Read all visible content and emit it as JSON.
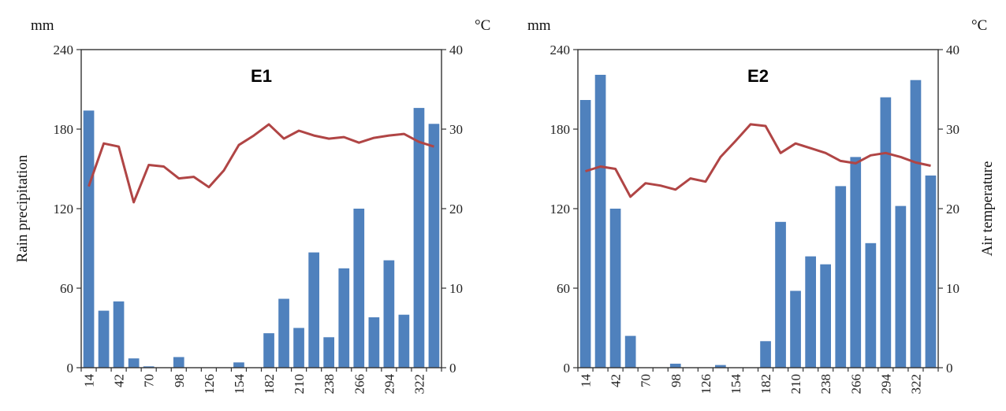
{
  "chart_data": [
    {
      "type": "bar",
      "title": "E1",
      "x": [
        14,
        28,
        42,
        56,
        70,
        84,
        98,
        112,
        126,
        140,
        154,
        168,
        182,
        196,
        210,
        224,
        238,
        252,
        266,
        280,
        294,
        308,
        322,
        336
      ],
      "x_tick_labels": [
        "14",
        "42",
        "70",
        "98",
        "126",
        "154",
        "182",
        "210",
        "238",
        "266",
        "294",
        "322"
      ],
      "ylabel": "Rain precipitation",
      "ylabel_unit": "mm",
      "y2label": "",
      "y2label_unit": "°C",
      "ylim": [
        0,
        240
      ],
      "y2lim": [
        0,
        40
      ],
      "y_ticks": [
        "0",
        "60",
        "120",
        "180",
        "240"
      ],
      "y2_ticks": [
        "0",
        "10",
        "20",
        "30",
        "40"
      ],
      "grid": false,
      "series": [
        {
          "type": "bar",
          "axis": "left",
          "color": "#4f81bd",
          "values": [
            194,
            43,
            50,
            7,
            1,
            0,
            8,
            0,
            0,
            0,
            4,
            0,
            26,
            52,
            30,
            87,
            23,
            75,
            120,
            38,
            81,
            40,
            196,
            184
          ]
        },
        {
          "type": "line",
          "axis": "right",
          "color": "#b04545",
          "values": [
            22.8,
            28.2,
            27.8,
            20.8,
            25.5,
            25.3,
            23.8,
            24.0,
            22.7,
            24.8,
            28.0,
            29.2,
            30.6,
            28.8,
            29.8,
            29.2,
            28.8,
            29.0,
            28.3,
            28.9,
            29.2,
            29.4,
            28.4,
            27.8
          ]
        }
      ]
    },
    {
      "type": "bar",
      "title": "E2",
      "x": [
        14,
        28,
        42,
        56,
        70,
        84,
        98,
        112,
        126,
        140,
        154,
        168,
        182,
        196,
        210,
        224,
        238,
        252,
        266,
        280,
        294,
        308,
        322,
        336
      ],
      "x_tick_labels": [
        "14",
        "42",
        "70",
        "98",
        "126",
        "154",
        "182",
        "210",
        "238",
        "266",
        "294",
        "322"
      ],
      "ylabel": "",
      "ylabel_unit": "mm",
      "y2label": "Air temperature",
      "y2label_unit": "°C",
      "ylim": [
        0,
        240
      ],
      "y2lim": [
        0,
        40
      ],
      "y_ticks": [
        "0",
        "60",
        "120",
        "180",
        "240"
      ],
      "y2_ticks": [
        "0",
        "10",
        "20",
        "30",
        "40"
      ],
      "grid": false,
      "series": [
        {
          "type": "bar",
          "axis": "left",
          "color": "#4f81bd",
          "values": [
            202,
            221,
            120,
            24,
            0,
            0,
            3,
            0,
            0,
            2,
            0,
            0,
            20,
            110,
            58,
            84,
            78,
            137,
            159,
            94,
            204,
            122,
            217,
            145
          ]
        },
        {
          "type": "line",
          "axis": "right",
          "color": "#b04545",
          "values": [
            24.7,
            25.3,
            25.0,
            21.5,
            23.2,
            22.9,
            22.4,
            23.8,
            23.4,
            26.5,
            28.5,
            30.6,
            30.4,
            27.0,
            28.2,
            27.6,
            27.0,
            26.0,
            25.7,
            26.7,
            27.0,
            26.5,
            25.8,
            25.4
          ]
        }
      ]
    }
  ]
}
